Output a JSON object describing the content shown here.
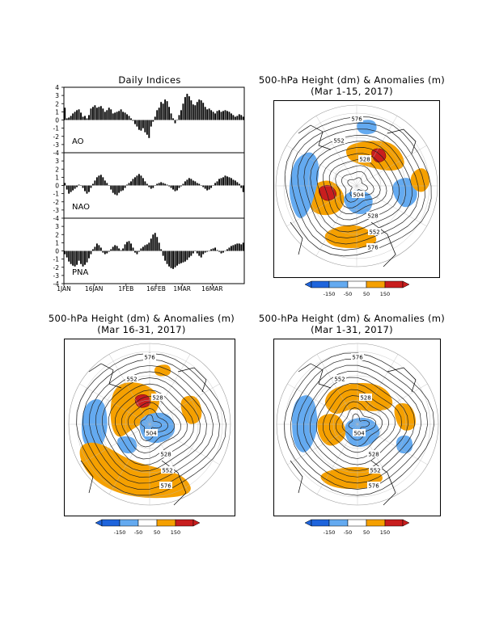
{
  "indices": {
    "title": "Daily Indices",
    "panels": [
      {
        "name": "AO",
        "ylim": [
          -4,
          4
        ],
        "ticks": [
          4,
          3,
          2,
          1,
          0,
          -1,
          -2,
          -3,
          -4
        ]
      },
      {
        "name": "NAO",
        "ylim": [
          -4,
          4
        ],
        "ticks": [
          3,
          2,
          1,
          0,
          -1,
          -2,
          -3,
          -4
        ]
      },
      {
        "name": "PNA",
        "ylim": [
          -4,
          4
        ],
        "ticks": [
          3,
          2,
          1,
          0,
          -1,
          -2,
          -3,
          -4
        ]
      }
    ],
    "xticks": [
      "1JAN",
      "16JAN",
      "1FEB",
      "16FEB",
      "1MAR",
      "16MAR"
    ]
  },
  "maps": [
    {
      "title": "500-hPa Height (dm) & Anomalies (m)",
      "subtitle": "(Mar 1-15, 2017)",
      "labels": [
        "576",
        "552",
        "528",
        "504",
        "528",
        "552",
        "576"
      ]
    },
    {
      "title": "500-hPa Height (dm) & Anomalies (m)",
      "subtitle": "(Mar 16-31, 2017)",
      "labels": [
        "576",
        "552",
        "528",
        "504",
        "528",
        "552",
        "576"
      ]
    },
    {
      "title": "500-hPa Height (dm) & Anomalies (m)",
      "subtitle": "(Mar 1-31, 2017)",
      "labels": [
        "576",
        "552",
        "528",
        "504",
        "528",
        "552",
        "576"
      ]
    }
  ],
  "legend": {
    "labels": [
      "-150",
      "-50",
      "50",
      "150"
    ],
    "colors": [
      "#1e64dc",
      "#64aaf0",
      "#ffffff",
      "#f5a000",
      "#c81e1e"
    ]
  },
  "chart_data": [
    {
      "type": "bar",
      "name": "AO",
      "x_start": "1JAN",
      "values": [
        1.5,
        0.2,
        0.3,
        0.5,
        0.8,
        1.0,
        1.2,
        1.3,
        0.9,
        0.4,
        0.5,
        0.2,
        0.6,
        1.4,
        1.6,
        1.8,
        1.5,
        1.6,
        1.7,
        1.4,
        1.0,
        1.2,
        1.5,
        1.3,
        0.8,
        0.9,
        1.0,
        1.1,
        1.3,
        1.0,
        0.9,
        0.7,
        0.5,
        0.2,
        -0.1,
        -0.5,
        -0.8,
        -1.2,
        -1.3,
        -1.0,
        -1.5,
        -1.8,
        -2.2,
        -0.8,
        -0.2,
        0.4,
        1.2,
        1.5,
        2.2,
        2.0,
        2.5,
        2.3,
        1.6,
        0.8,
        0.2,
        -0.4,
        0.0,
        0.6,
        1.2,
        2.0,
        2.8,
        3.2,
        2.9,
        2.4,
        1.9,
        1.8,
        2.2,
        2.5,
        2.4,
        2.1,
        1.6,
        1.3,
        1.4,
        1.2,
        1.0,
        0.8,
        1.1,
        1.2,
        1.0,
        1.1,
        1.2,
        1.1,
        1.0,
        0.8,
        0.6,
        0.4,
        0.5,
        0.7,
        0.6,
        0.4
      ]
    },
    {
      "type": "bar",
      "name": "NAO",
      "x_start": "1JAN",
      "values": [
        0.3,
        -0.5,
        -1.0,
        -0.8,
        -0.6,
        -0.4,
        -0.2,
        0.1,
        0.0,
        -0.3,
        -0.7,
        -1.0,
        -0.8,
        -0.3,
        0.2,
        0.6,
        1.0,
        1.2,
        1.3,
        1.0,
        0.6,
        0.3,
        0.0,
        -0.5,
        -0.9,
        -1.1,
        -1.2,
        -0.9,
        -0.7,
        -0.6,
        -0.3,
        0.1,
        0.3,
        0.5,
        0.8,
        1.0,
        1.2,
        1.4,
        1.2,
        0.9,
        0.5,
        0.2,
        -0.2,
        -0.4,
        -0.3,
        0.0,
        0.2,
        0.3,
        0.4,
        0.3,
        0.2,
        0.1,
        -0.1,
        -0.3,
        -0.5,
        -0.7,
        -0.6,
        -0.3,
        -0.1,
        0.2,
        0.5,
        0.7,
        0.9,
        0.8,
        0.6,
        0.5,
        0.3,
        0.2,
        0.0,
        -0.2,
        -0.4,
        -0.6,
        -0.5,
        -0.3,
        0.0,
        0.3,
        0.5,
        0.8,
        0.9,
        1.0,
        1.2,
        1.1,
        1.0,
        0.9,
        0.7,
        0.6,
        0.4,
        0.2,
        -0.3,
        -0.8
      ]
    },
    {
      "type": "bar",
      "name": "PNA",
      "x_start": "1JAN",
      "values": [
        -0.4,
        -0.8,
        -1.3,
        -1.6,
        -1.8,
        -1.9,
        -1.7,
        -1.2,
        -1.6,
        -1.9,
        -1.7,
        -1.4,
        -0.9,
        -0.4,
        0.2,
        0.5,
        0.9,
        0.7,
        0.4,
        -0.2,
        -0.4,
        -0.3,
        -0.1,
        0.2,
        0.5,
        0.7,
        0.6,
        0.3,
        0.1,
        0.3,
        0.8,
        1.1,
        1.2,
        0.9,
        0.4,
        -0.2,
        -0.4,
        -0.1,
        0.3,
        0.5,
        0.7,
        0.8,
        1.0,
        1.5,
        2.0,
        2.2,
        1.7,
        1.0,
        0.2,
        -0.6,
        -1.2,
        -1.6,
        -1.9,
        -2.1,
        -2.2,
        -2.0,
        -1.8,
        -1.6,
        -1.5,
        -1.4,
        -1.3,
        -1.1,
        -0.8,
        -0.6,
        -0.3,
        0.0,
        -0.3,
        -0.6,
        -0.8,
        -0.4,
        -0.2,
        -0.1,
        0.0,
        0.2,
        0.3,
        0.4,
        0.1,
        -0.1,
        -0.3,
        -0.2,
        0.0,
        0.2,
        0.4,
        0.6,
        0.7,
        0.8,
        0.9,
        0.9,
        0.8,
        1.0
      ]
    }
  ]
}
